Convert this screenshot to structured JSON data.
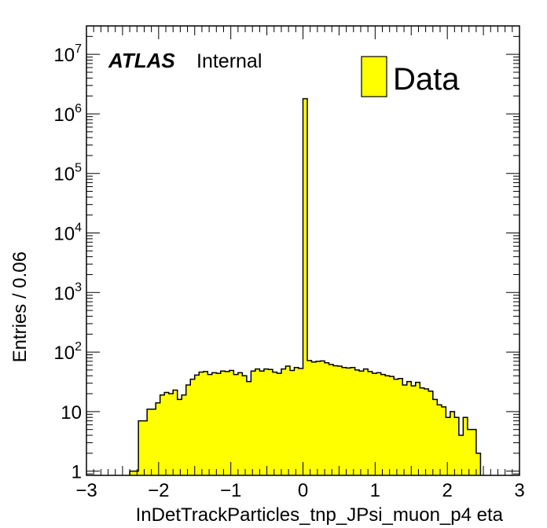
{
  "chart_data": {
    "type": "bar",
    "subtype": "histogram",
    "xlabel": "InDetTrackParticles_tnp_JPsi_muon_p4 eta",
    "ylabel": "Entries / 0.06",
    "experiment": "ATLAS",
    "status": "Internal",
    "log_y": true,
    "xlim": [
      -3,
      3
    ],
    "ylim": [
      0.85,
      30000000
    ],
    "x_ticks": [
      -3,
      -2,
      -1,
      0,
      1,
      2,
      3
    ],
    "x_tick_labels": [
      "−3",
      "−2",
      "−1",
      "0",
      "1",
      "2",
      "3"
    ],
    "y_ticks": [
      {
        "value": 1,
        "base": "1",
        "exp": ""
      },
      {
        "value": 10,
        "base": "10",
        "exp": ""
      },
      {
        "value": 100,
        "base": "10",
        "exp": "2"
      },
      {
        "value": 1000,
        "base": "10",
        "exp": "3"
      },
      {
        "value": 10000,
        "base": "10",
        "exp": "4"
      },
      {
        "value": 100000,
        "base": "10",
        "exp": "5"
      },
      {
        "value": 1000000,
        "base": "10",
        "exp": "6"
      },
      {
        "value": 10000000,
        "base": "10",
        "exp": "7"
      }
    ],
    "bin_width": 0.06,
    "bin_start": -3.0,
    "fill_color": "#ffff00",
    "line_color": "#000000",
    "legend": {
      "position": "top-right",
      "entries": [
        {
          "label": "Data",
          "color": "#ffff00"
        }
      ]
    },
    "series": [
      {
        "name": "Data",
        "values": [
          0,
          0,
          0,
          0,
          0,
          0,
          0,
          0,
          0,
          0,
          1,
          1,
          7,
          7,
          11,
          11,
          14,
          19,
          21,
          20,
          23,
          16,
          19,
          28,
          35,
          41,
          46,
          47,
          42,
          45,
          44,
          48,
          47,
          49,
          42,
          45,
          40,
          32,
          48,
          52,
          48,
          52,
          51,
          46,
          44,
          52,
          58,
          49,
          55,
          53,
          1800000,
          72,
          68,
          70,
          71,
          66,
          62,
          59,
          58,
          55,
          54,
          55,
          50,
          48,
          52,
          47,
          44,
          45,
          42,
          40,
          39,
          35,
          36,
          28,
          32,
          27,
          31,
          25,
          24,
          22,
          16,
          13,
          12,
          8,
          10,
          8,
          4,
          8,
          5,
          5,
          2,
          0,
          0,
          0,
          0,
          0,
          0,
          0,
          0,
          0
        ]
      }
    ]
  }
}
